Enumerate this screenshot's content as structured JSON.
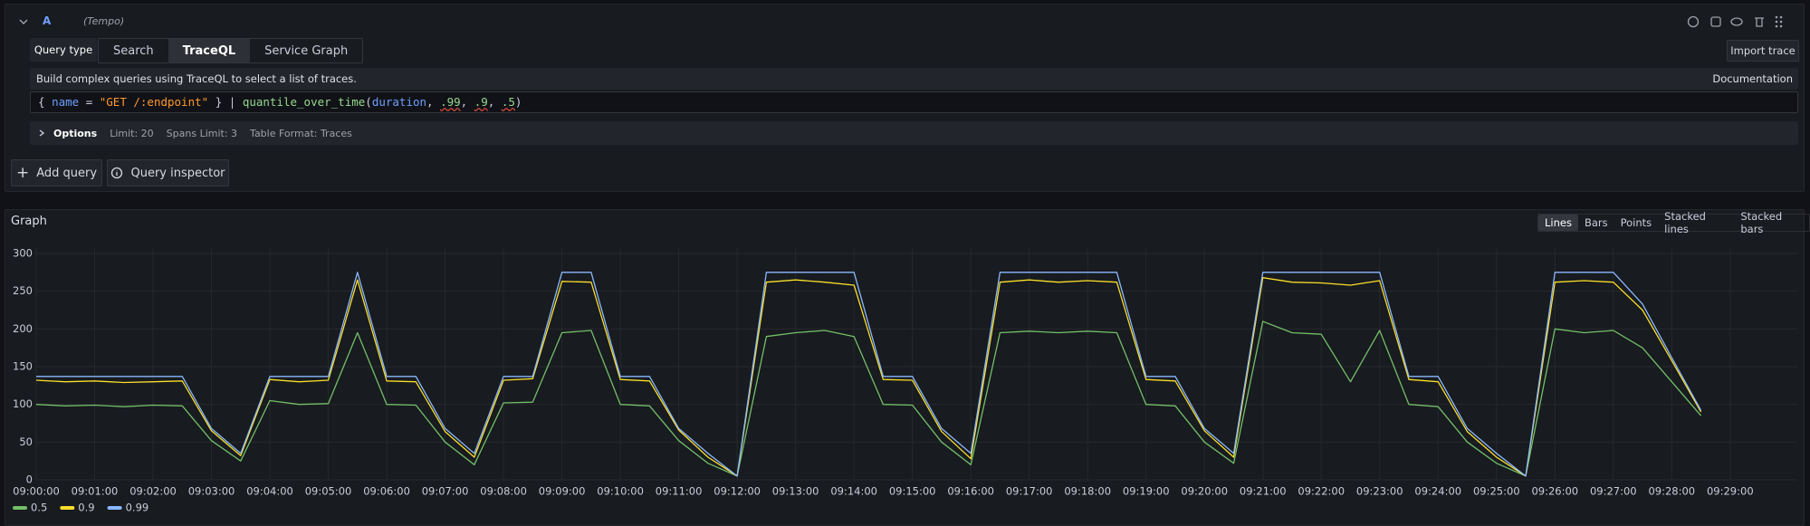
{
  "query_editor": {
    "ref_id": "A",
    "datasource": "(Tempo)",
    "query_type_label": "Query type",
    "query_types": [
      "Search",
      "TraceQL",
      "Service Graph"
    ],
    "import_button": "Import trace",
    "help_text": "Build complex queries using TraceQL to select a list of traces.",
    "docs_link": "Documentation",
    "code_tokens": [
      "{ ",
      "name",
      " = ",
      "\"GET /:endpoint\"",
      " } | ",
      "quantile_over_time",
      "(",
      "duration",
      ", ",
      ".99",
      ", ",
      ".9",
      ", ",
      ".5",
      ")"
    ],
    "options_label": "Options",
    "options": [
      "Limit: 20",
      "Spans Limit: 3",
      "Table Format: Traces"
    ],
    "add_query": "Add query",
    "query_inspector": "Query inspector"
  },
  "graph_panel": {
    "title": "Graph",
    "view_modes": [
      "Lines",
      "Bars",
      "Points",
      "Stacked lines",
      "Stacked bars"
    ]
  },
  "chart_data": {
    "type": "line",
    "x": [
      "09:00:00",
      "09:00:30",
      "09:01:00",
      "09:01:30",
      "09:02:00",
      "09:02:30",
      "09:03:00",
      "09:03:30",
      "09:04:00",
      "09:04:30",
      "09:05:00",
      "09:05:30",
      "09:06:00",
      "09:06:30",
      "09:07:00",
      "09:07:30",
      "09:08:00",
      "09:08:30",
      "09:09:00",
      "09:09:30",
      "09:10:00",
      "09:10:30",
      "09:11:00",
      "09:11:30",
      "09:12:00",
      "09:12:30",
      "09:13:00",
      "09:13:30",
      "09:14:00",
      "09:14:30",
      "09:15:00",
      "09:15:30",
      "09:16:00",
      "09:16:30",
      "09:17:00",
      "09:17:30",
      "09:18:00",
      "09:18:30",
      "09:19:00",
      "09:19:30",
      "09:20:00",
      "09:20:30",
      "09:21:00",
      "09:21:30",
      "09:22:00",
      "09:22:30",
      "09:23:00",
      "09:23:30",
      "09:24:00",
      "09:24:30",
      "09:25:00",
      "09:25:30",
      "09:26:00",
      "09:26:30",
      "09:27:00",
      "09:27:30",
      "09:28:00",
      "09:28:30"
    ],
    "series": [
      {
        "name": "0.5",
        "color": "#73bf69",
        "values": [
          100,
          98,
          99,
          97,
          99,
          98,
          52,
          25,
          105,
          100,
          101,
          195,
          100,
          99,
          50,
          20,
          102,
          103,
          195,
          198,
          100,
          98,
          52,
          22,
          5,
          190,
          195,
          198,
          190,
          100,
          99,
          50,
          20,
          195,
          197,
          195,
          197,
          195,
          100,
          98,
          50,
          22,
          210,
          195,
          193,
          130,
          198,
          100,
          97,
          50,
          22,
          5,
          200,
          195,
          198,
          175,
          130,
          85
        ]
      },
      {
        "name": "0.9",
        "color": "#fade2a",
        "values": [
          132,
          130,
          131,
          129,
          130,
          131,
          65,
          32,
          133,
          130,
          132,
          265,
          131,
          130,
          64,
          30,
          132,
          134,
          263,
          262,
          133,
          131,
          66,
          30,
          5,
          262,
          265,
          262,
          258,
          133,
          132,
          64,
          28,
          262,
          265,
          262,
          264,
          262,
          133,
          131,
          65,
          30,
          268,
          262,
          261,
          258,
          264,
          133,
          130,
          64,
          30,
          5,
          262,
          264,
          262,
          225,
          158,
          90
        ]
      },
      {
        "name": "0.99",
        "color": "#8ab8ff",
        "values": [
          137,
          137,
          137,
          137,
          137,
          137,
          68,
          35,
          137,
          137,
          137,
          275,
          137,
          137,
          68,
          35,
          137,
          137,
          275,
          275,
          137,
          137,
          68,
          35,
          5,
          275,
          275,
          275,
          275,
          137,
          137,
          68,
          35,
          275,
          275,
          275,
          275,
          275,
          137,
          137,
          68,
          35,
          275,
          275,
          275,
          275,
          275,
          137,
          137,
          68,
          35,
          5,
          275,
          275,
          275,
          233,
          162,
          92
        ]
      }
    ],
    "xlim": [
      "09:00:00",
      "09:30:09"
    ],
    "xticks": [
      "09:00:00",
      "09:01:00",
      "09:02:00",
      "09:03:00",
      "09:04:00",
      "09:05:00",
      "09:06:00",
      "09:07:00",
      "09:08:00",
      "09:09:00",
      "09:10:00",
      "09:11:00",
      "09:12:00",
      "09:13:00",
      "09:14:00",
      "09:15:00",
      "09:16:00",
      "09:17:00",
      "09:18:00",
      "09:19:00",
      "09:20:00",
      "09:21:00",
      "09:22:00",
      "09:23:00",
      "09:24:00",
      "09:25:00",
      "09:26:00",
      "09:27:00",
      "09:28:00",
      "09:29:00"
    ],
    "ylim": [
      0,
      300
    ],
    "yticks": [
      0,
      50,
      100,
      150,
      200,
      250,
      300
    ],
    "grid": true,
    "legend": "bottom-left"
  }
}
